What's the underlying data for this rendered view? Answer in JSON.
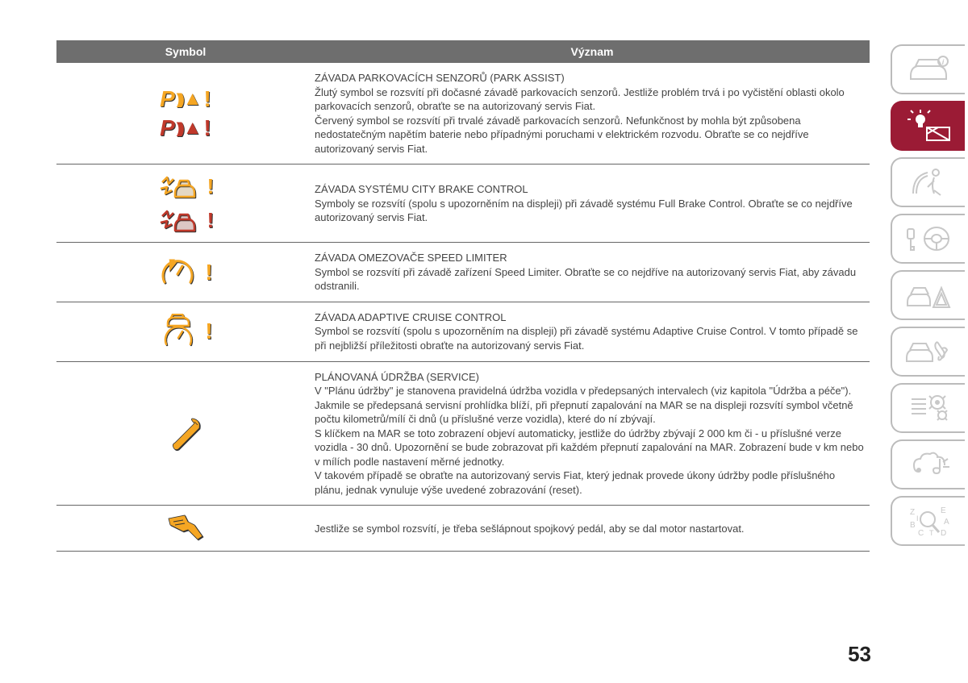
{
  "page_number": "53",
  "headers": {
    "symbol": "Symbol",
    "meaning": "Význam"
  },
  "rows": [
    {
      "symbol_glyphs": [
        {
          "color": "amber",
          "type": "park-assist"
        },
        {
          "color": "red",
          "type": "park-assist"
        }
      ],
      "title": "ZÁVADA PARKOVACÍCH SENZORŮ (PARK ASSIST)",
      "body": "Žlutý symbol se rozsvítí při dočasné závadě parkovacích senzorů. Jestliže problém trvá i po vyčistění oblasti okolo parkovacích senzorů, obraťte se na autorizovaný servis Fiat.\nČervený symbol se rozsvítí při trvalé závadě parkovacích senzorů. Nefunkčnost by mohla být způsobena nedostatečným napětím baterie nebo případnými poruchami v elektrickém rozvodu. Obraťte se co nejdříve autorizovaný servis Fiat."
    },
    {
      "symbol_glyphs": [
        {
          "color": "amber",
          "type": "collision"
        },
        {
          "color": "red",
          "type": "collision"
        }
      ],
      "title": "ZÁVADA SYSTÉMU CITY BRAKE CONTROL",
      "body": "Symboly se rozsvítí (spolu s upozorněním na displeji) při závadě systému Full Brake Control. Obraťte se co nejdříve autorizovaný servis Fiat."
    },
    {
      "symbol_glyphs": [
        {
          "color": "amber",
          "type": "speed-limiter"
        }
      ],
      "title": "ZÁVADA OMEZOVAČE SPEED LIMITER",
      "body": "Symbol se rozsvítí při závadě zařízení Speed Limiter. Obraťte se co nejdříve na autorizovaný servis Fiat, aby závadu odstranili."
    },
    {
      "symbol_glyphs": [
        {
          "color": "amber",
          "type": "adaptive-cruise"
        }
      ],
      "title": "ZÁVADA ADAPTIVE CRUISE CONTROL",
      "body": "Symbol se rozsvítí (spolu s upozorněním na displeji) při závadě systému Adaptive Cruise Control. V tomto případě se při nejbližší příležitosti obraťte na autorizovaný servis Fiat."
    },
    {
      "symbol_glyphs": [
        {
          "color": "amber",
          "type": "wrench"
        }
      ],
      "title": "PLÁNOVANÁ ÚDRŽBA (SERVICE)",
      "body": "V \"Plánu údržby\" je stanovena pravidelná údržba vozidla v předepsaných intervalech (viz kapitola \"Údržba a péče\").\nJakmile se předepsaná servisní prohlídka blíží, při přepnutí zapalování na MAR se na displeji rozsvítí symbol včetně počtu kilometrů/mílí či dnů (u příslušné verze vozidla), které do ní zbývají.\nS klíčkem na MAR se toto zobrazení objeví automaticky, jestliže do údržby zbývají 2 000 km či - u příslušné verze vozidla - 30 dnů. Upozornění se bude zobrazovat při každém přepnutí zapalování na MAR. Zobrazení bude v km nebo v mílích podle nastavení měrné jednotky.\nV takovém případě se obraťte na autorizovaný servis Fiat, který jednak provede úkony údržby podle příslušného plánu, jednak vynuluje výše uvedené zobrazování (reset)."
    },
    {
      "symbol_glyphs": [
        {
          "color": "amber",
          "type": "clutch-pedal"
        }
      ],
      "title": "",
      "body": "Jestliže se symbol rozsvítí, je třeba sešlápnout spojkový pedál, aby se dal motor nastartovat."
    }
  ]
}
